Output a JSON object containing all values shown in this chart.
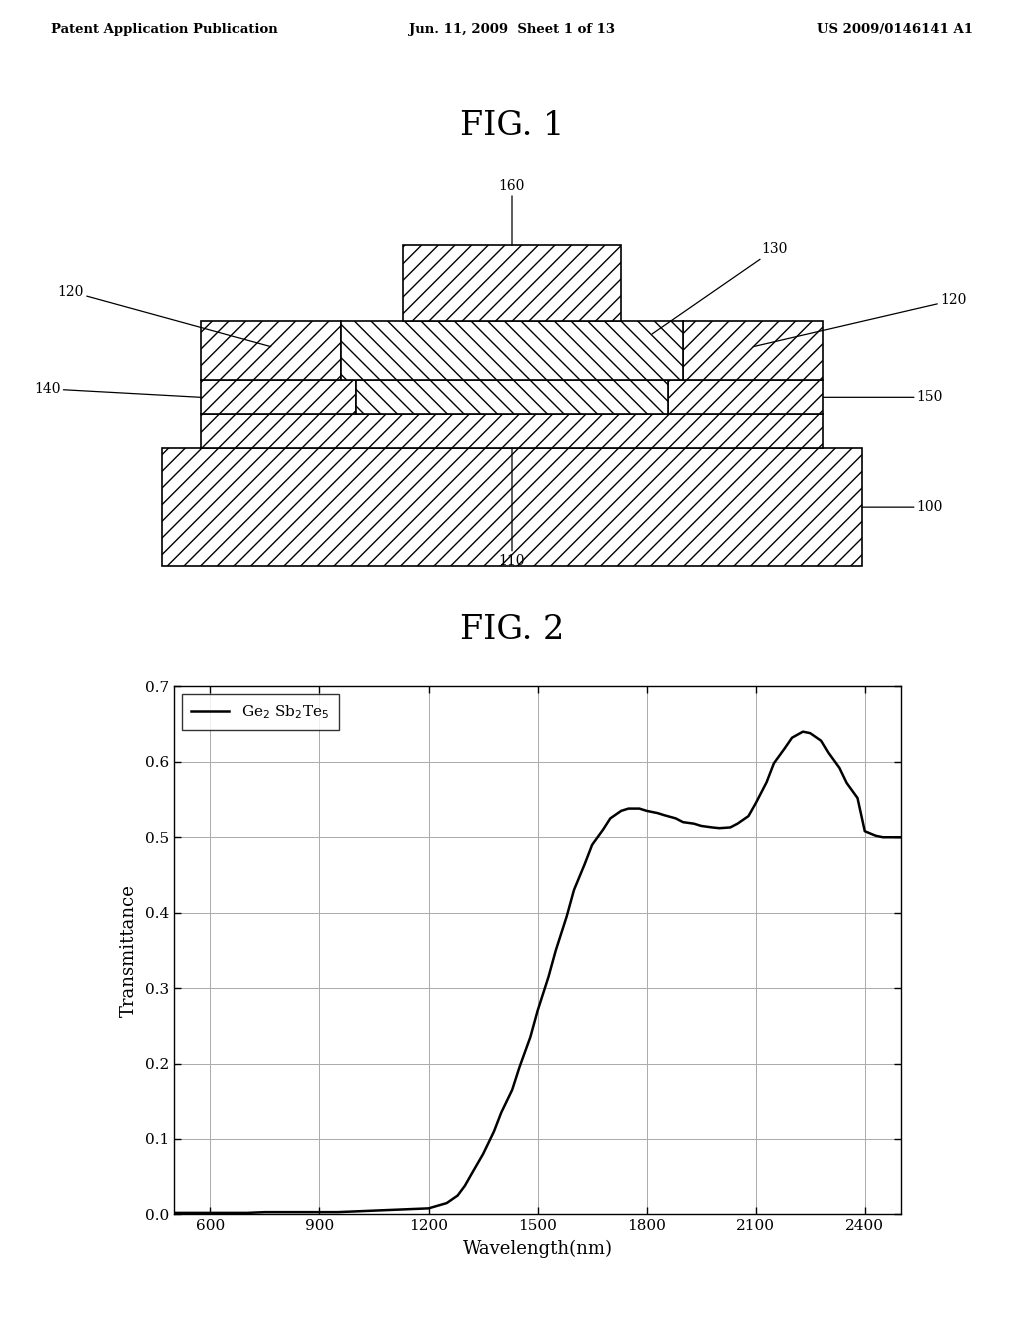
{
  "header_left": "Patent Application Publication",
  "header_mid": "Jun. 11, 2009  Sheet 1 of 13",
  "header_right": "US 2009/0146141 A1",
  "fig1_title": "FIG. 1",
  "fig2_title": "FIG. 2",
  "xlabel": "Wavelength(nm)",
  "ylabel": "Transmittance",
  "xlim": [
    500,
    2500
  ],
  "ylim": [
    0.0,
    0.7
  ],
  "xticks": [
    600,
    900,
    1200,
    1500,
    1800,
    2100,
    2400
  ],
  "yticks": [
    0.0,
    0.1,
    0.2,
    0.3,
    0.4,
    0.5,
    0.6,
    0.7
  ],
  "wavelengths": [
    500,
    600,
    700,
    750,
    800,
    850,
    900,
    950,
    1000,
    1050,
    1100,
    1150,
    1200,
    1250,
    1280,
    1300,
    1320,
    1350,
    1380,
    1400,
    1430,
    1450,
    1480,
    1500,
    1530,
    1550,
    1580,
    1600,
    1630,
    1650,
    1680,
    1700,
    1730,
    1750,
    1780,
    1800,
    1830,
    1850,
    1880,
    1900,
    1930,
    1950,
    1980,
    2000,
    2030,
    2050,
    2080,
    2100,
    2130,
    2150,
    2180,
    2200,
    2230,
    2250,
    2280,
    2300,
    2330,
    2350,
    2380,
    2400,
    2430,
    2450,
    2500
  ],
  "transmittance": [
    0.002,
    0.002,
    0.002,
    0.003,
    0.003,
    0.003,
    0.003,
    0.003,
    0.004,
    0.005,
    0.006,
    0.007,
    0.008,
    0.015,
    0.025,
    0.038,
    0.055,
    0.08,
    0.11,
    0.135,
    0.165,
    0.195,
    0.235,
    0.27,
    0.315,
    0.35,
    0.395,
    0.43,
    0.465,
    0.49,
    0.51,
    0.525,
    0.535,
    0.538,
    0.538,
    0.535,
    0.532,
    0.529,
    0.525,
    0.52,
    0.518,
    0.515,
    0.513,
    0.512,
    0.513,
    0.518,
    0.528,
    0.545,
    0.573,
    0.598,
    0.618,
    0.632,
    0.64,
    0.638,
    0.628,
    0.612,
    0.592,
    0.572,
    0.552,
    0.508,
    0.502,
    0.5,
    0.5
  ],
  "bg_color": "#ffffff",
  "line_color": "#000000",
  "grid_color": "#aaaaaa",
  "label_100": "100",
  "label_110": "110",
  "label_120_left": "120",
  "label_120_right": "120",
  "label_130": "130",
  "label_140": "140",
  "label_150": "150",
  "label_160": "160"
}
